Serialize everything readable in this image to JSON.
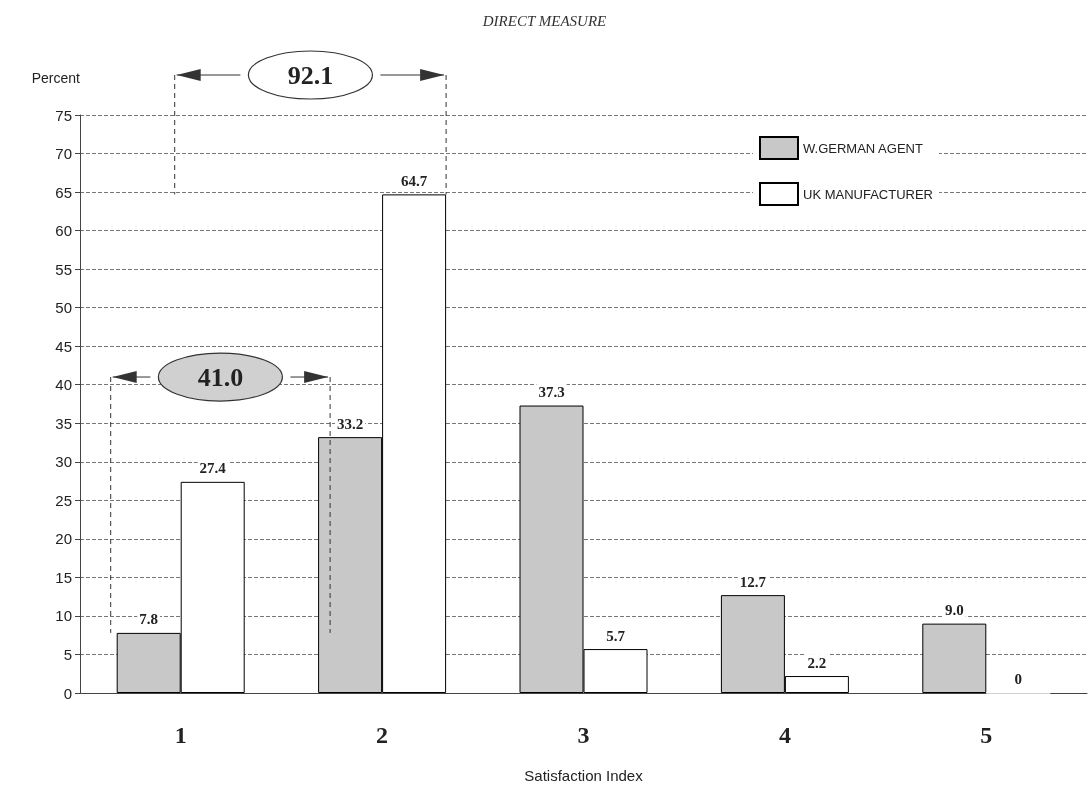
{
  "chart_data": {
    "type": "bar",
    "title": "DIRECT MEASURE",
    "xlabel": "Satisfaction Index",
    "ylabel": "Percent",
    "categories": [
      "1",
      "2",
      "3",
      "4",
      "5"
    ],
    "series": [
      {
        "name": "W.GERMAN AGENT",
        "color": "#c8c8c8",
        "values": [
          7.8,
          33.2,
          37.3,
          12.7,
          9.0
        ],
        "value_labels": [
          "7.8",
          "33.2",
          "37.3",
          "12.7",
          "9.0"
        ]
      },
      {
        "name": "UK MANUFACTURER",
        "color": "#ffffff",
        "values": [
          27.4,
          64.7,
          5.7,
          2.2,
          0
        ],
        "value_labels": [
          "27.4",
          "64.7",
          "5.7",
          "2.2",
          "0"
        ]
      }
    ],
    "annotations": [
      "92.1",
      "41.0"
    ],
    "ylim": [
      0,
      75
    ],
    "yticks": [
      0,
      5,
      10,
      15,
      20,
      25,
      30,
      35,
      40,
      45,
      50,
      55,
      60,
      65,
      70,
      75
    ],
    "grid": "y",
    "legend": "top right"
  }
}
